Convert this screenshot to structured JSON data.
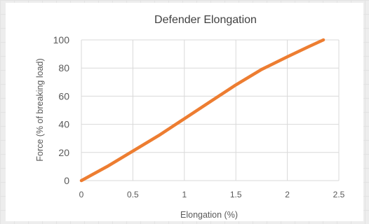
{
  "chart_data": {
    "type": "line",
    "title": "Defender Elongation",
    "xlabel": "Elongation (%)",
    "ylabel": "Force (% of breaking load)",
    "xlim": [
      0,
      2.5
    ],
    "ylim": [
      0,
      100
    ],
    "xticks": [
      "0",
      "0.5",
      "1",
      "1.5",
      "2",
      "2.5"
    ],
    "yticks": [
      "0",
      "20",
      "40",
      "60",
      "80",
      "100"
    ],
    "grid": true,
    "legend": "none",
    "series": [
      {
        "color": "#ED7D31",
        "x": [
          0,
          0.25,
          0.5,
          0.75,
          1.0,
          1.25,
          1.5,
          1.75,
          2.0,
          2.2,
          2.35
        ],
        "y": [
          0,
          10,
          21,
          32,
          44,
          56,
          68,
          79,
          88,
          95,
          100
        ]
      }
    ]
  }
}
